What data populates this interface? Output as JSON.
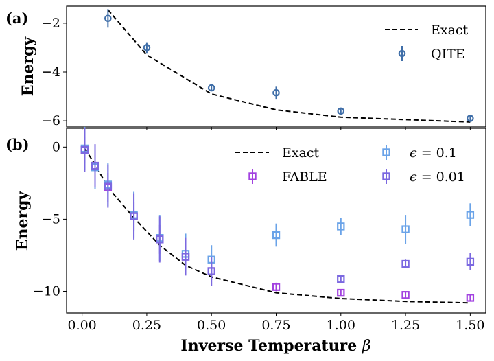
{
  "chart_data": [
    {
      "panel_label": "(a)",
      "type": "scatter",
      "ylabel": "Energy",
      "xlabel": "",
      "xlim": [
        -0.06,
        1.56
      ],
      "ylim": [
        -6.25,
        -1.3
      ],
      "yticks": [
        -2,
        -4,
        -6
      ],
      "ytick_labels": [
        "−2",
        "−4",
        "−6"
      ],
      "legend_position": "top-right",
      "exact": {
        "name": "Exact",
        "color": "#000000",
        "x": [
          0.1,
          0.25,
          0.5,
          0.75,
          1.0,
          1.25,
          1.5
        ],
        "y": [
          -1.45,
          -3.3,
          -4.9,
          -5.55,
          -5.85,
          -5.95,
          -6.05
        ]
      },
      "series": [
        {
          "name": "QITE",
          "color": "#3f6ea8",
          "marker": "circle",
          "x": [
            0.1,
            0.25,
            0.5,
            0.75,
            1.0,
            1.5
          ],
          "y": [
            -1.8,
            -3.0,
            -4.65,
            -4.85,
            -5.6,
            -5.9
          ],
          "err": [
            0.38,
            0.22,
            0.12,
            0.25,
            0.1,
            0.12
          ]
        }
      ]
    },
    {
      "panel_label": "(b)",
      "type": "scatter",
      "ylabel": "Energy",
      "xlabel": "Inverse Temperature",
      "xlabel_symbol": "β",
      "xlim": [
        -0.06,
        1.56
      ],
      "ylim": [
        -11.5,
        1.3
      ],
      "xticks": [
        0.0,
        0.25,
        0.5,
        0.75,
        1.0,
        1.25,
        1.5
      ],
      "xtick_labels": [
        "0.00",
        "0.25",
        "0.50",
        "0.75",
        "1.00",
        "1.25",
        "1.50"
      ],
      "yticks": [
        0,
        -5,
        -10
      ],
      "ytick_labels": [
        "0",
        "−5",
        "−10"
      ],
      "legend_position": "top-right",
      "exact": {
        "name": "Exact",
        "color": "#000000",
        "x": [
          0.01,
          0.05,
          0.1,
          0.2,
          0.3,
          0.4,
          0.5,
          0.75,
          1.0,
          1.25,
          1.5
        ],
        "y": [
          -0.1,
          -1.2,
          -2.8,
          -4.9,
          -6.8,
          -8.2,
          -9.0,
          -10.1,
          -10.5,
          -10.7,
          -10.8
        ]
      },
      "series": [
        {
          "name": "FABLE",
          "color": "#a242e0",
          "marker": "square",
          "x": [
            0.01,
            0.05,
            0.1,
            0.2,
            0.3,
            0.4,
            0.5,
            0.75,
            1.0,
            1.25,
            1.5
          ],
          "y": [
            -0.2,
            -1.3,
            -2.8,
            -4.8,
            -6.4,
            -7.6,
            -8.6,
            -9.7,
            -10.1,
            -10.25,
            -10.45
          ],
          "err": [
            0.9,
            0.9,
            1.0,
            1.0,
            1.0,
            1.0,
            0.6,
            0.3,
            0.2,
            0.2,
            0.2
          ]
        },
        {
          "name": "ϵ = 0.1",
          "label_symbol": "ϵ",
          "label_rest": " = 0.1",
          "color": "#6aa3e8",
          "marker": "square",
          "x": [
            0.01,
            0.05,
            0.1,
            0.2,
            0.3,
            0.4,
            0.5,
            0.75,
            1.0,
            1.25,
            1.5
          ],
          "y": [
            -0.1,
            -1.4,
            -2.6,
            -4.7,
            -6.3,
            -7.4,
            -7.8,
            -6.1,
            -5.5,
            -5.7,
            -4.7
          ],
          "err": [
            1.5,
            1.5,
            1.5,
            1.6,
            1.6,
            1.4,
            1.0,
            0.8,
            0.6,
            1.0,
            0.8
          ]
        },
        {
          "name": "ϵ = 0.01",
          "label_symbol": "ϵ",
          "label_rest": " = 0.01",
          "color": "#7b68e0",
          "marker": "square",
          "x": [
            0.01,
            0.05,
            0.1,
            0.2,
            0.3,
            0.4,
            0.5,
            1.0,
            1.25,
            1.5
          ],
          "y": [
            -0.2,
            -1.3,
            -2.7,
            -4.8,
            -6.4,
            -7.6,
            -8.6,
            -9.15,
            -8.1,
            -7.95
          ],
          "err": [
            1.5,
            1.5,
            1.5,
            1.6,
            1.6,
            1.3,
            1.0,
            0.3,
            0.3,
            0.6
          ]
        }
      ]
    }
  ]
}
